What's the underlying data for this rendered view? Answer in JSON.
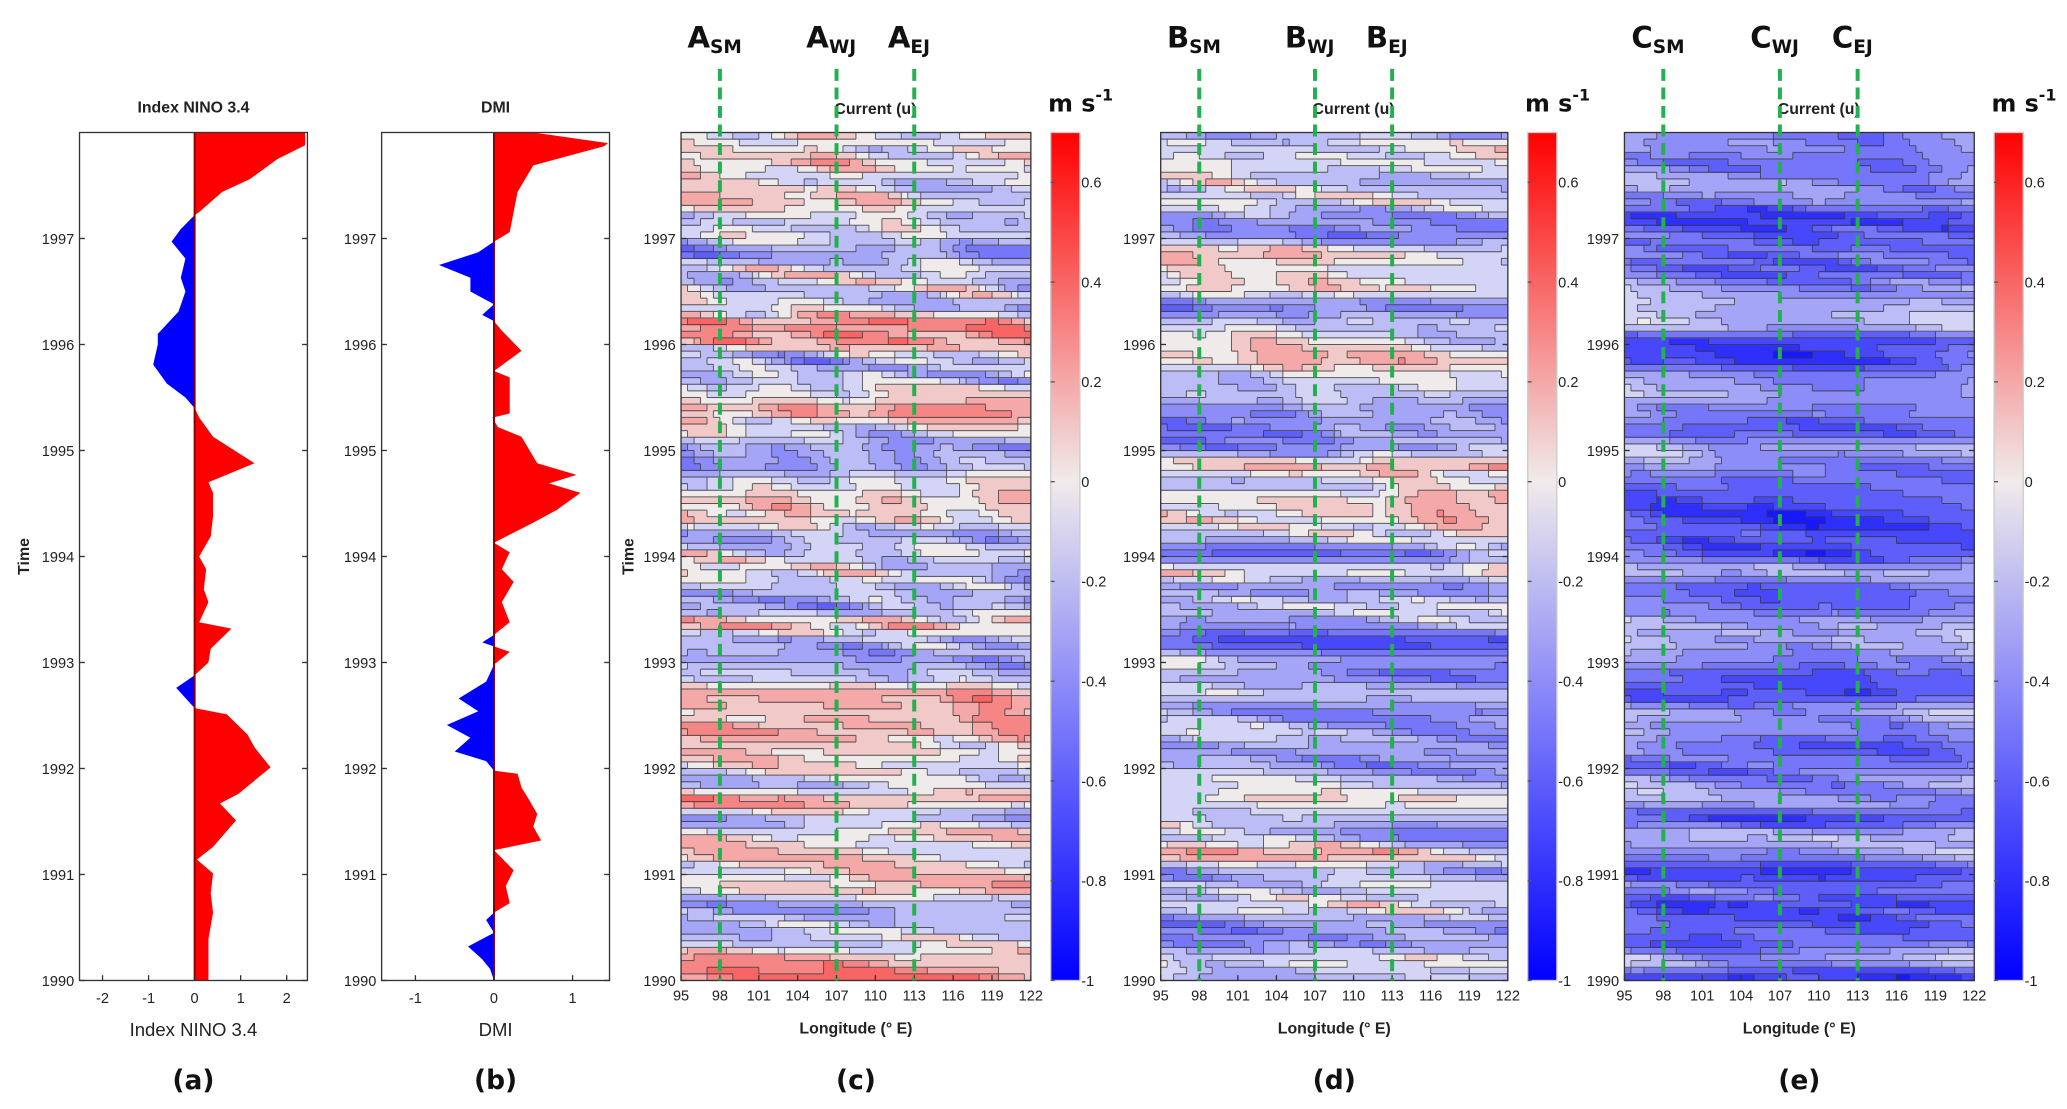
{
  "colors": {
    "positive": "#ff0000",
    "negative": "#0000ff",
    "zero_line": "#8b0000",
    "dashed_line": "#22b14c",
    "contour_line": "#333333"
  },
  "chart_data": [
    {
      "id": "a",
      "type": "area",
      "panel_label": "(a)",
      "title": "Index NINO 3.4",
      "xlabel": "Index NINO 3.4",
      "ylabel": "Time",
      "xlim": [
        -2.5,
        2.45
      ],
      "ylim": [
        1990,
        1998
      ],
      "xticks": [
        "-2",
        "-1",
        "0",
        "1",
        "2"
      ],
      "xtick_values": [
        -2,
        -1,
        0,
        1,
        2
      ],
      "yticks": [
        "1990",
        "1991",
        "1992",
        "1993",
        "1994",
        "1995",
        "1996",
        "1997"
      ],
      "points": [
        [
          1990.0,
          0.3
        ],
        [
          1990.39,
          0.3
        ],
        [
          1990.64,
          0.4
        ],
        [
          1990.82,
          0.35
        ],
        [
          1991.01,
          0.4
        ],
        [
          1991.14,
          0.05
        ],
        [
          1991.26,
          0.4
        ],
        [
          1991.51,
          0.9
        ],
        [
          1991.67,
          0.55
        ],
        [
          1991.76,
          0.95
        ],
        [
          1992.01,
          1.65
        ],
        [
          1992.2,
          1.3
        ],
        [
          1992.32,
          1.15
        ],
        [
          1992.51,
          0.7
        ],
        [
          1992.57,
          0.0
        ],
        [
          1992.76,
          -0.4
        ],
        [
          1992.88,
          0.0
        ],
        [
          1993.0,
          0.3
        ],
        [
          1993.13,
          0.35
        ],
        [
          1993.32,
          0.8
        ],
        [
          1993.38,
          0.1
        ],
        [
          1993.57,
          0.3
        ],
        [
          1993.69,
          0.2
        ],
        [
          1993.88,
          0.25
        ],
        [
          1994.0,
          0.1
        ],
        [
          1994.19,
          0.35
        ],
        [
          1994.38,
          0.4
        ],
        [
          1994.6,
          0.4
        ],
        [
          1994.7,
          0.3
        ],
        [
          1994.88,
          1.3
        ],
        [
          1995.13,
          0.4
        ],
        [
          1995.31,
          0.1
        ],
        [
          1995.4,
          0.0
        ],
        [
          1995.5,
          -0.2
        ],
        [
          1995.63,
          -0.6
        ],
        [
          1995.81,
          -0.9
        ],
        [
          1996.0,
          -0.8
        ],
        [
          1996.1,
          -0.8
        ],
        [
          1996.31,
          -0.35
        ],
        [
          1996.5,
          -0.2
        ],
        [
          1996.63,
          -0.3
        ],
        [
          1996.81,
          -0.2
        ],
        [
          1996.97,
          -0.5
        ],
        [
          1997.09,
          -0.3
        ],
        [
          1997.22,
          0.0
        ],
        [
          1997.25,
          0.1
        ],
        [
          1997.44,
          0.6
        ],
        [
          1997.56,
          1.2
        ],
        [
          1997.75,
          1.8
        ],
        [
          1997.88,
          2.4
        ],
        [
          1998.0,
          2.4
        ]
      ]
    },
    {
      "id": "b",
      "type": "area",
      "panel_label": "(b)",
      "title": "DMI",
      "xlabel": "DMI",
      "ylabel": "",
      "xlim": [
        -1.43,
        1.47
      ],
      "ylim": [
        1990,
        1998
      ],
      "xticks": [
        "-1",
        "0",
        "1"
      ],
      "xtick_values": [
        -1,
        0,
        1
      ],
      "yticks": [
        "1990",
        "1991",
        "1992",
        "1993",
        "1994",
        "1995",
        "1996",
        "1997"
      ],
      "points": [
        [
          1990.0,
          0.0
        ],
        [
          1990.11,
          -0.05
        ],
        [
          1990.2,
          -0.15
        ],
        [
          1990.32,
          -0.33
        ],
        [
          1990.45,
          0.0
        ],
        [
          1990.57,
          -0.1
        ],
        [
          1990.64,
          0.0
        ],
        [
          1990.73,
          0.2
        ],
        [
          1990.89,
          0.15
        ],
        [
          1991.04,
          0.25
        ],
        [
          1991.23,
          0.0
        ],
        [
          1991.32,
          0.6
        ],
        [
          1991.45,
          0.5
        ],
        [
          1991.57,
          0.55
        ],
        [
          1991.7,
          0.45
        ],
        [
          1991.82,
          0.35
        ],
        [
          1991.95,
          0.3
        ],
        [
          1991.98,
          0.0
        ],
        [
          1992.07,
          -0.1
        ],
        [
          1992.16,
          -0.5
        ],
        [
          1992.29,
          -0.3
        ],
        [
          1992.41,
          -0.6
        ],
        [
          1992.54,
          -0.2
        ],
        [
          1992.66,
          -0.45
        ],
        [
          1992.82,
          -0.1
        ],
        [
          1992.98,
          0.0
        ],
        [
          1993.1,
          0.2
        ],
        [
          1993.19,
          -0.15
        ],
        [
          1993.26,
          0.0
        ],
        [
          1993.38,
          0.2
        ],
        [
          1993.57,
          0.1
        ],
        [
          1993.76,
          0.25
        ],
        [
          1993.88,
          0.1
        ],
        [
          1994.04,
          0.2
        ],
        [
          1994.13,
          0.0
        ],
        [
          1994.32,
          0.5
        ],
        [
          1994.44,
          0.8
        ],
        [
          1994.6,
          1.1
        ],
        [
          1994.69,
          0.7
        ],
        [
          1994.77,
          1.05
        ],
        [
          1994.88,
          0.55
        ],
        [
          1995.13,
          0.35
        ],
        [
          1995.22,
          0.05
        ],
        [
          1995.31,
          -0.02
        ],
        [
          1995.35,
          0.2
        ],
        [
          1995.56,
          0.2
        ],
        [
          1995.69,
          0.2
        ],
        [
          1995.75,
          0.0
        ],
        [
          1995.94,
          0.35
        ],
        [
          1996.13,
          0.1
        ],
        [
          1996.22,
          0.0
        ],
        [
          1996.28,
          -0.15
        ],
        [
          1996.38,
          0.0
        ],
        [
          1996.5,
          -0.3
        ],
        [
          1996.63,
          -0.3
        ],
        [
          1996.75,
          -0.7
        ],
        [
          1996.87,
          -0.2
        ],
        [
          1996.97,
          0.0
        ],
        [
          1997.06,
          0.2
        ],
        [
          1997.25,
          0.25
        ],
        [
          1997.44,
          0.3
        ],
        [
          1997.69,
          0.5
        ],
        [
          1997.87,
          1.4
        ],
        [
          1997.9,
          1.45
        ],
        [
          1998.0,
          0.5
        ]
      ]
    },
    {
      "id": "c",
      "type": "heatmap",
      "panel_label": "(c)",
      "title": "Current (u)",
      "xlabel": "Longitude (° E)",
      "ylabel": "Time",
      "colorbar_unit": "m s",
      "colorbar_unit_exp": "-1",
      "xlim": [
        95,
        122
      ],
      "ylim": [
        1990,
        1998
      ],
      "clim": [
        -1,
        0.7
      ],
      "mean_u": -0.05,
      "variability": 0.3,
      "xticks": [
        "95",
        "98",
        "101",
        "104",
        "107",
        "110",
        "113",
        "116",
        "119",
        "122"
      ],
      "yticks": [
        "1990",
        "1991",
        "1992",
        "1993",
        "1994",
        "1995",
        "1996",
        "1997"
      ],
      "cbar_ticks": [
        "0.6",
        "0.4",
        "0.2",
        "0",
        "-0.2",
        "-0.4",
        "-0.6",
        "-0.8",
        "-1"
      ],
      "sections": [
        {
          "letter": "A",
          "sub": "SM",
          "lon": 98
        },
        {
          "letter": "A",
          "sub": "WJ",
          "lon": 107
        },
        {
          "letter": "A",
          "sub": "EJ",
          "lon": 113
        }
      ]
    },
    {
      "id": "d",
      "type": "heatmap",
      "panel_label": "(d)",
      "title": "Current (u)",
      "xlabel": "Longitude (° E)",
      "ylabel": "",
      "colorbar_unit": "m s",
      "colorbar_unit_exp": "-1",
      "xlim": [
        95,
        122
      ],
      "ylim": [
        1990,
        1998
      ],
      "clim": [
        -1,
        0.7
      ],
      "mean_u": -0.18,
      "variability": 0.28,
      "xticks": [
        "95",
        "98",
        "101",
        "104",
        "107",
        "110",
        "113",
        "116",
        "119",
        "122"
      ],
      "yticks": [
        "1990",
        "1991",
        "1992",
        "1993",
        "1994",
        "1995",
        "1996",
        "1997"
      ],
      "cbar_ticks": [
        "0.6",
        "0.4",
        "0.2",
        "0",
        "-0.2",
        "-0.4",
        "-0.6",
        "-0.8",
        "-1"
      ],
      "sections": [
        {
          "letter": "B",
          "sub": "SM",
          "lon": 98
        },
        {
          "letter": "B",
          "sub": "WJ",
          "lon": 107
        },
        {
          "letter": "B",
          "sub": "EJ",
          "lon": 113
        }
      ]
    },
    {
      "id": "e",
      "type": "heatmap",
      "panel_label": "(e)",
      "title": "Current (u)",
      "xlabel": "Longitude (° E)",
      "ylabel": "",
      "colorbar_unit": "m s",
      "colorbar_unit_exp": "-1",
      "xlim": [
        95,
        122
      ],
      "ylim": [
        1990,
        1998
      ],
      "clim": [
        -1,
        0.7
      ],
      "mean_u": -0.4,
      "variability": 0.22,
      "xticks": [
        "95",
        "98",
        "101",
        "104",
        "107",
        "110",
        "113",
        "116",
        "119",
        "122"
      ],
      "yticks": [
        "1990",
        "1991",
        "1992",
        "1993",
        "1994",
        "1995",
        "1996",
        "1997"
      ],
      "cbar_ticks": [
        "0.6",
        "0.4",
        "0.2",
        "0",
        "-0.2",
        "-0.4",
        "-0.6",
        "-0.8",
        "-1"
      ],
      "sections": [
        {
          "letter": "C",
          "sub": "SM",
          "lon": 98
        },
        {
          "letter": "C",
          "sub": "WJ",
          "lon": 107
        },
        {
          "letter": "C",
          "sub": "EJ",
          "lon": 113
        }
      ]
    }
  ]
}
